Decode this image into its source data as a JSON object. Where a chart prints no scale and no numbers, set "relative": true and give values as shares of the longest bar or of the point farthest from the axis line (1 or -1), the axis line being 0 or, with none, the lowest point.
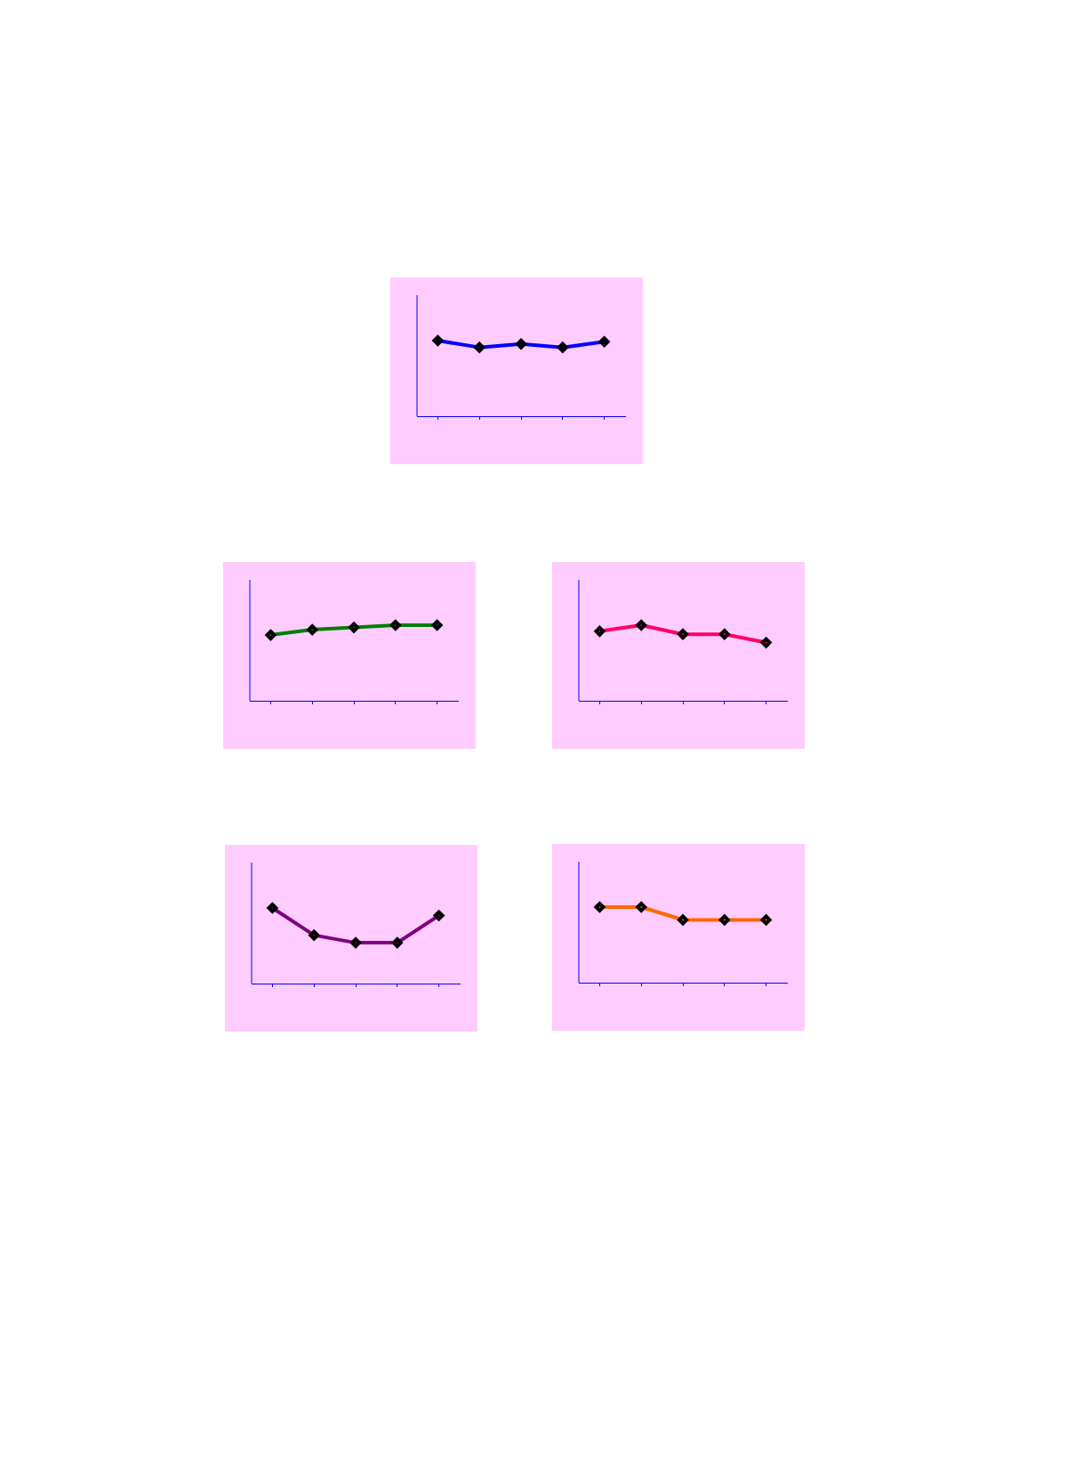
{
  "chart_data": [
    {
      "type": "line",
      "relative": true,
      "categories": [
        null,
        null,
        null,
        null,
        null
      ],
      "series": [
        {
          "color": "#0000ff",
          "values": [
            1,
            0.91,
            0.955,
            0.91,
            0.985
          ]
        }
      ],
      "marker": "diamond",
      "legend": false
    },
    {
      "type": "line",
      "relative": true,
      "categories": [
        null,
        null,
        null,
        null,
        null
      ],
      "series": [
        {
          "color": "#008000",
          "values": [
            0.87,
            0.94,
            0.97,
            1,
            1
          ]
        }
      ],
      "marker": "diamond",
      "legend": false
    },
    {
      "type": "line",
      "relative": true,
      "categories": [
        null,
        null,
        null,
        null,
        null
      ],
      "series": [
        {
          "color": "#ff0066",
          "values": [
            0.92,
            1,
            0.88,
            0.88,
            0.77
          ]
        }
      ],
      "marker": "diamond",
      "legend": false
    },
    {
      "type": "line",
      "relative": true,
      "categories": [
        null,
        null,
        null,
        null,
        null
      ],
      "series": [
        {
          "color": "#800080",
          "values": [
            1,
            0.64,
            0.54,
            0.54,
            0.9
          ]
        }
      ],
      "marker": "diamond",
      "legend": false
    },
    {
      "type": "line",
      "relative": true,
      "categories": [
        null,
        null,
        null,
        null,
        null
      ],
      "series": [
        {
          "color": "#ff6600",
          "values": [
            1,
            1,
            0.83,
            0.83,
            0.83
          ]
        }
      ],
      "marker": "diamond",
      "legend": false
    }
  ]
}
